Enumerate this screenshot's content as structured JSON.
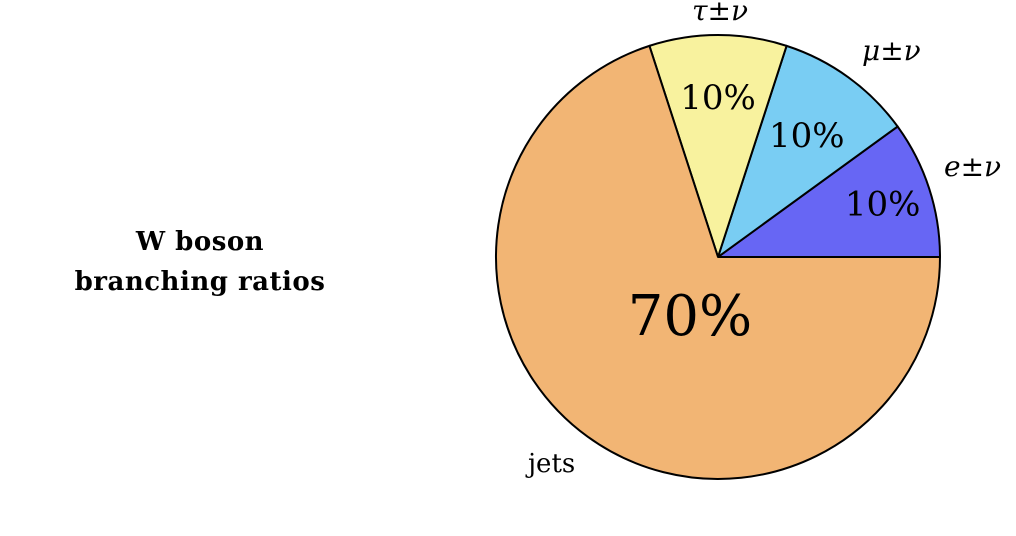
{
  "chart_data": {
    "type": "pie",
    "title_lines": [
      "W boson",
      "branching ratios"
    ],
    "slices": [
      {
        "label": "e±ν",
        "value": 10,
        "value_label": "10%",
        "color": "#6766f4"
      },
      {
        "label": "μ±ν",
        "value": 10,
        "value_label": "10%",
        "color": "#79cdf3"
      },
      {
        "label": "τ±ν",
        "value": 10,
        "value_label": "10%",
        "color": "#f8f29e"
      },
      {
        "label": "jets",
        "value": 70,
        "value_label": "70%",
        "color": "#f2b574"
      }
    ]
  }
}
